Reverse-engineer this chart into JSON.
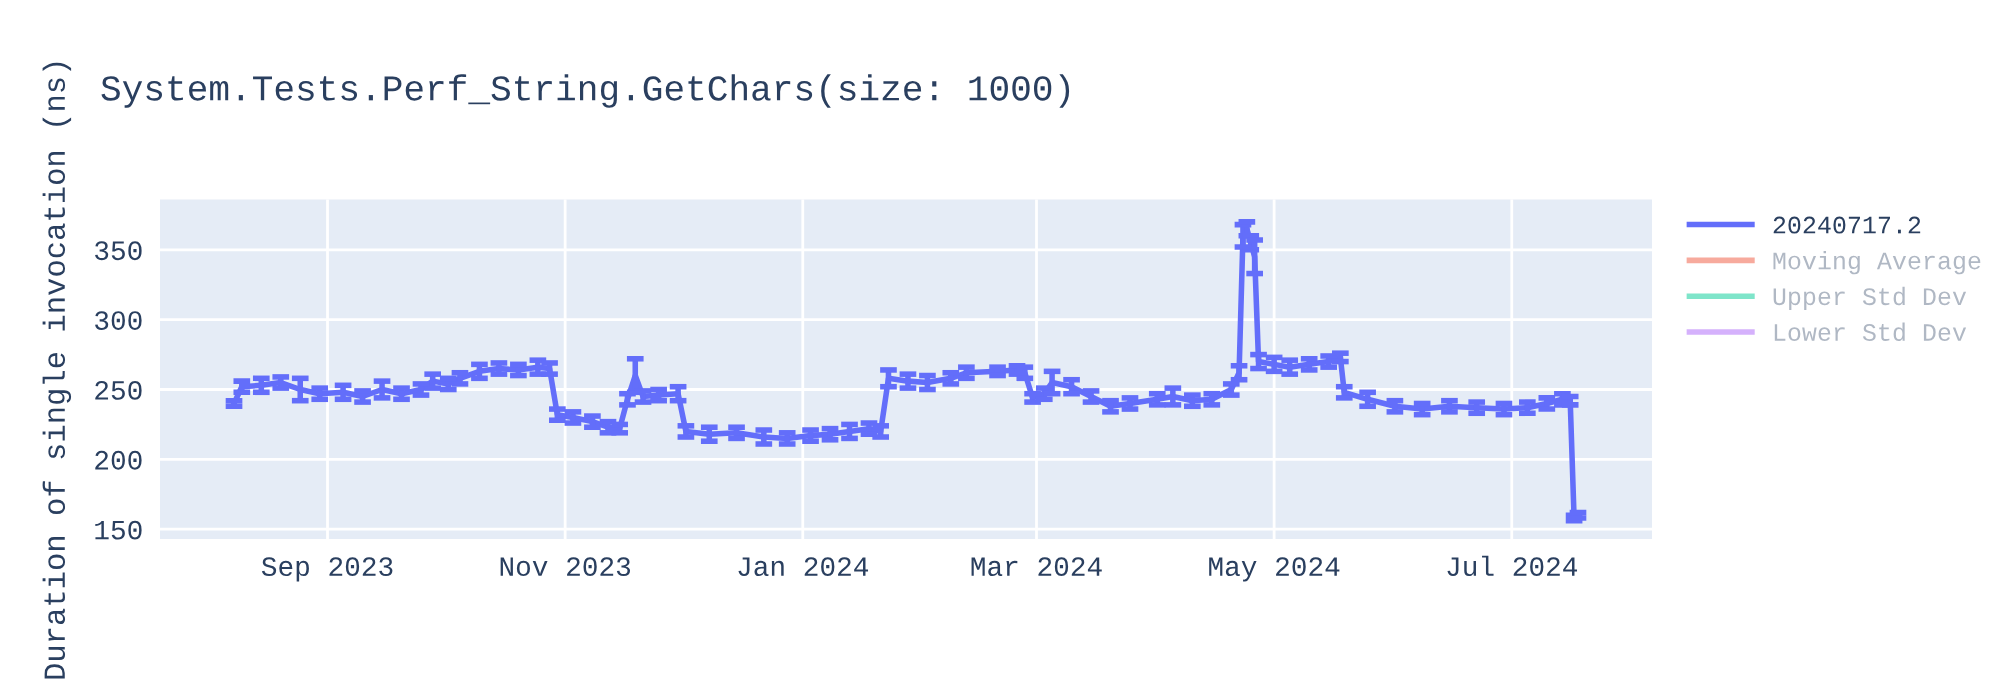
{
  "chart_data": {
    "type": "line",
    "title": "System.Tests.Perf_String.GetChars(size: 1000)",
    "ylabel": "Duration of single invocation (ns)",
    "xlim": [
      "2023-07-20",
      "2024-08-06"
    ],
    "ylim": [
      143,
      386
    ],
    "xticks": [
      {
        "value": "2023-09-01",
        "label": "Sep 2023"
      },
      {
        "value": "2023-11-01",
        "label": "Nov 2023"
      },
      {
        "value": "2024-01-01",
        "label": "Jan 2024"
      },
      {
        "value": "2024-03-01",
        "label": "Mar 2024"
      },
      {
        "value": "2024-05-01",
        "label": "May 2024"
      },
      {
        "value": "2024-07-01",
        "label": "Jul 2024"
      }
    ],
    "yticks": [
      150,
      200,
      250,
      300,
      350
    ],
    "grid": true,
    "legend": "top right",
    "marker": "none",
    "line_style": "solid",
    "series": [
      {
        "name": "20240717.2",
        "color": "#636efa",
        "x": [
          "2023-08-08",
          "2023-08-10",
          "2023-08-15",
          "2023-08-20",
          "2023-08-25",
          "2023-08-30",
          "2023-09-05",
          "2023-09-10",
          "2023-09-15",
          "2023-09-20",
          "2023-09-25",
          "2023-09-28",
          "2023-10-02",
          "2023-10-05",
          "2023-10-10",
          "2023-10-15",
          "2023-10-20",
          "2023-10-25",
          "2023-10-28",
          "2023-10-30",
          "2023-11-03",
          "2023-11-08",
          "2023-11-12",
          "2023-11-15",
          "2023-11-17",
          "2023-11-19",
          "2023-11-21",
          "2023-11-25",
          "2023-11-30",
          "2023-12-02",
          "2023-12-08",
          "2023-12-15",
          "2023-12-22",
          "2023-12-28",
          "2024-01-03",
          "2024-01-08",
          "2024-01-13",
          "2024-01-18",
          "2024-01-21",
          "2024-01-23",
          "2024-01-28",
          "2024-02-02",
          "2024-02-08",
          "2024-02-12",
          "2024-02-20",
          "2024-02-25",
          "2024-02-27",
          "2024-02-29",
          "2024-03-03",
          "2024-03-05",
          "2024-03-10",
          "2024-03-15",
          "2024-03-20",
          "2024-03-25",
          "2024-04-01",
          "2024-04-05",
          "2024-04-10",
          "2024-04-15",
          "2024-04-20",
          "2024-04-22",
          "2024-04-23",
          "2024-04-24",
          "2024-04-25",
          "2024-04-26",
          "2024-04-27",
          "2024-05-01",
          "2024-05-05",
          "2024-05-10",
          "2024-05-15",
          "2024-05-18",
          "2024-05-19",
          "2024-05-25",
          "2024-06-01",
          "2024-06-08",
          "2024-06-15",
          "2024-06-22",
          "2024-06-29",
          "2024-07-05",
          "2024-07-10",
          "2024-07-14",
          "2024-07-16",
          "2024-07-17",
          "2024-07-18"
        ],
        "values": [
          240,
          252,
          253,
          255,
          250,
          247,
          248,
          245,
          250,
          247,
          250,
          256,
          254,
          258,
          263,
          265,
          264,
          266,
          265,
          232,
          230,
          227,
          223,
          222,
          243,
          260,
          245,
          246,
          247,
          220,
          218,
          219,
          216,
          215,
          217,
          218,
          220,
          222,
          220,
          258,
          256,
          255,
          258,
          262,
          263,
          264,
          262,
          244,
          247,
          255,
          252,
          245,
          238,
          240,
          243,
          245,
          242,
          243,
          250,
          262,
          360,
          365,
          355,
          345,
          270,
          268,
          266,
          268,
          270,
          273,
          248,
          243,
          238,
          236,
          238,
          237,
          236,
          237,
          240,
          243,
          242,
          158,
          160
        ],
        "errors": [
          2,
          4,
          5,
          4,
          8,
          4,
          5,
          4,
          6,
          4,
          4,
          5,
          4,
          4,
          5,
          4,
          4,
          5,
          4,
          4,
          4,
          4,
          4,
          3,
          4,
          12,
          4,
          4,
          5,
          4,
          5,
          4,
          5,
          4,
          4,
          4,
          5,
          4,
          4,
          6,
          5,
          5,
          4,
          4,
          3,
          3,
          4,
          3,
          4,
          8,
          5,
          4,
          4,
          4,
          4,
          6,
          4,
          4,
          4,
          5,
          8,
          5,
          5,
          12,
          5,
          5,
          5,
          4,
          4,
          3,
          4,
          5,
          4,
          4,
          4,
          4,
          4,
          4,
          4,
          4,
          3,
          2,
          2
        ]
      },
      {
        "name": "Moving Average",
        "color": "#ef553b"
      },
      {
        "name": "Upper Std Dev",
        "color": "#00cc96"
      },
      {
        "name": "Lower Std Dev",
        "color": "#ab63fa"
      }
    ]
  }
}
